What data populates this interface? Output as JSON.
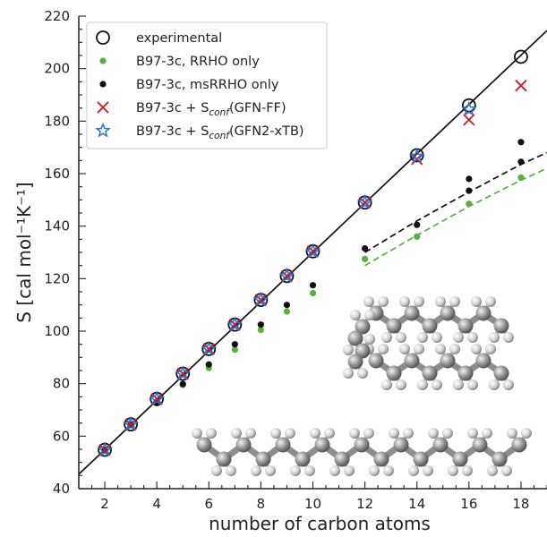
{
  "chart_data": {
    "type": "scatter",
    "xlabel": "number of carbon atoms",
    "ylabel": "S [cal mol⁻¹K⁻¹]",
    "xlim": [
      1,
      19
    ],
    "ylim": [
      40,
      220
    ],
    "x_ticks": [
      2,
      4,
      6,
      8,
      10,
      12,
      14,
      16,
      18
    ],
    "y_ticks": [
      40,
      60,
      80,
      100,
      120,
      140,
      160,
      180,
      200,
      220
    ],
    "grid": false,
    "legend_position": "top-left",
    "series": [
      {
        "name": "experimental",
        "marker": "open-circle",
        "color": "#111111",
        "x": [
          2,
          3,
          4,
          5,
          6,
          7,
          8,
          9,
          10,
          12,
          14,
          16,
          18
        ],
        "y": [
          54.8,
          64.5,
          74.2,
          83.8,
          93.2,
          102.5,
          111.9,
          121.0,
          130.4,
          149.0,
          167.0,
          186.0,
          204.5
        ]
      },
      {
        "name": "B97-3c, RRHO only",
        "marker": "dot",
        "color": "#5aae45",
        "x": [
          2,
          3,
          4,
          5,
          6,
          7,
          8,
          9,
          10,
          12,
          14,
          16,
          18
        ],
        "y": [
          54.6,
          64.2,
          72.6,
          79.5,
          86.0,
          93.0,
          100.5,
          107.5,
          114.5,
          127.5,
          136.0,
          148.5,
          158.5
        ]
      },
      {
        "name": "B97-3c, msRRHO only",
        "marker": "dot",
        "color": "#111111",
        "x": [
          2,
          3,
          4,
          5,
          6,
          7,
          8,
          9,
          10,
          12,
          14,
          16,
          16,
          18,
          18
        ],
        "y": [
          54.7,
          64.4,
          72.6,
          79.9,
          87.3,
          95.0,
          102.5,
          110.0,
          117.5,
          131.5,
          140.5,
          153.5,
          158.0,
          164.5,
          172.0
        ]
      },
      {
        "name": "B97-3c + S_conf(GFN-FF)",
        "marker": "x",
        "color": "#c8202a",
        "x": [
          2,
          3,
          4,
          5,
          6,
          7,
          8,
          9,
          10,
          12,
          14,
          16,
          18
        ],
        "y": [
          54.8,
          64.5,
          74.2,
          83.8,
          93.2,
          102.5,
          111.9,
          121.0,
          130.4,
          149.0,
          165.5,
          180.5,
          193.5
        ]
      },
      {
        "name": "B97-3c + S_conf(GFN2-xTB)",
        "marker": "star",
        "color": "#2f6fc4",
        "x": [
          2,
          3,
          4,
          5,
          6,
          7,
          8,
          9,
          10,
          12,
          14,
          16
        ],
        "y": [
          54.8,
          64.5,
          74.2,
          83.8,
          93.2,
          102.5,
          111.9,
          121.0,
          130.4,
          149.0,
          166.5,
          184.5
        ]
      }
    ],
    "fit_lines": [
      {
        "color": "#111111",
        "style": "solid",
        "x": [
          1,
          19
        ],
        "y": [
          45.5,
          214.5
        ]
      },
      {
        "color": "#111111",
        "style": "dashed",
        "x": [
          12,
          14,
          16,
          18,
          19
        ],
        "y": [
          130.0,
          142.0,
          153.0,
          163.5,
          168.0
        ]
      },
      {
        "color": "#5aae45",
        "style": "dashed",
        "x": [
          12,
          14,
          16,
          18,
          19
        ],
        "y": [
          125.0,
          136.5,
          147.5,
          157.5,
          162.0
        ]
      }
    ],
    "legend": {
      "items": [
        {
          "plain": "experimental",
          "sub": "",
          "tail": ""
        },
        {
          "plain": "B97-3c, RRHO only",
          "sub": "",
          "tail": ""
        },
        {
          "plain": "B97-3c, msRRHO only",
          "sub": "",
          "tail": ""
        },
        {
          "plain": "B97-3c + S",
          "sub": "conf",
          "tail": "(GFN-FF)"
        },
        {
          "plain": "B97-3c + S",
          "sub": "conf",
          "tail": "(GFN2-xTB)"
        }
      ]
    },
    "illustration": "ball-and-stick molecular models of long alkane chains (extended and folded)"
  }
}
